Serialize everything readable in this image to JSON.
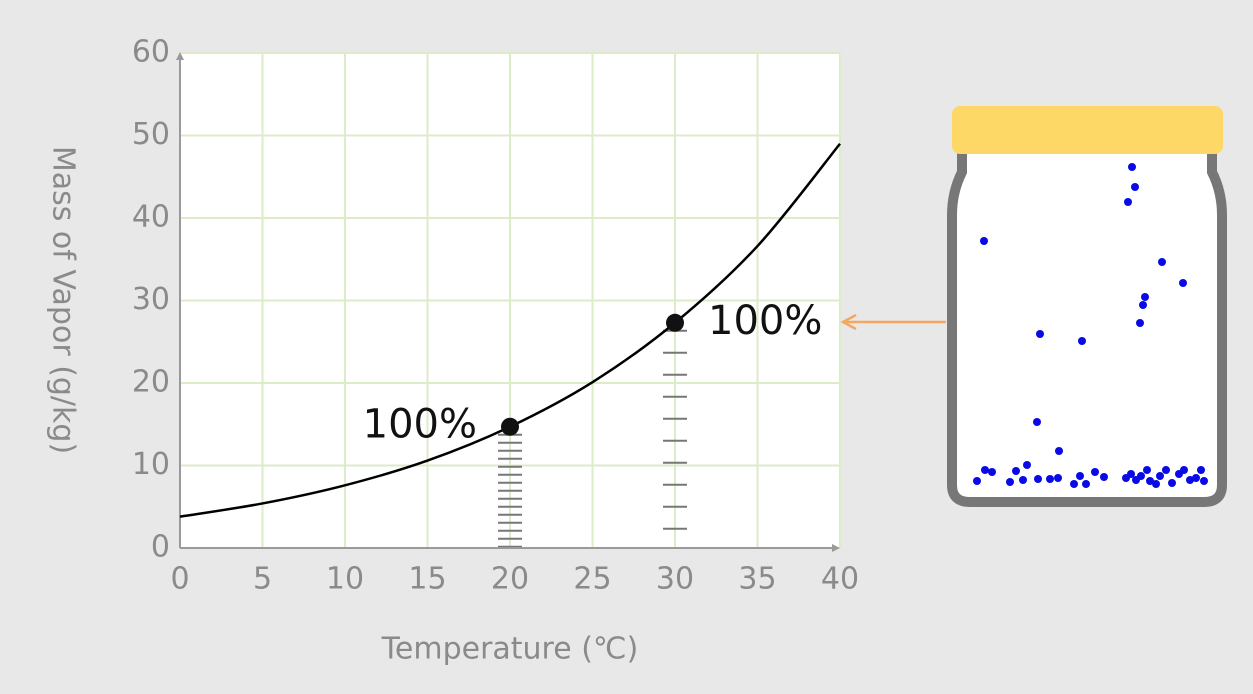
{
  "chart_data": {
    "type": "line",
    "x_label": "Temperature (℃)",
    "y_label": "Mass of Vapor (g/kg)",
    "series": [
      {
        "color": "#000000",
        "x": [
          0,
          5,
          10,
          15,
          20,
          25,
          30,
          35,
          40
        ],
        "values": [
          3.8,
          5.4,
          7.6,
          10.6,
          14.7,
          20.1,
          27.3,
          36.6,
          49
        ]
      }
    ],
    "annotations": [
      {
        "text": "100%",
        "x": 20,
        "y": 14.7
      },
      {
        "text": "100%",
        "x": 30,
        "y": 27.3
      }
    ],
    "xlim": [
      0,
      40
    ],
    "ylim": [
      0,
      60
    ],
    "xticks": [
      0,
      5,
      10,
      15,
      20,
      25,
      30,
      35,
      40
    ],
    "yticks": [
      0,
      10,
      20,
      30,
      40,
      50,
      60
    ],
    "grid": true,
    "grid_color": "#dcebc8"
  }
}
